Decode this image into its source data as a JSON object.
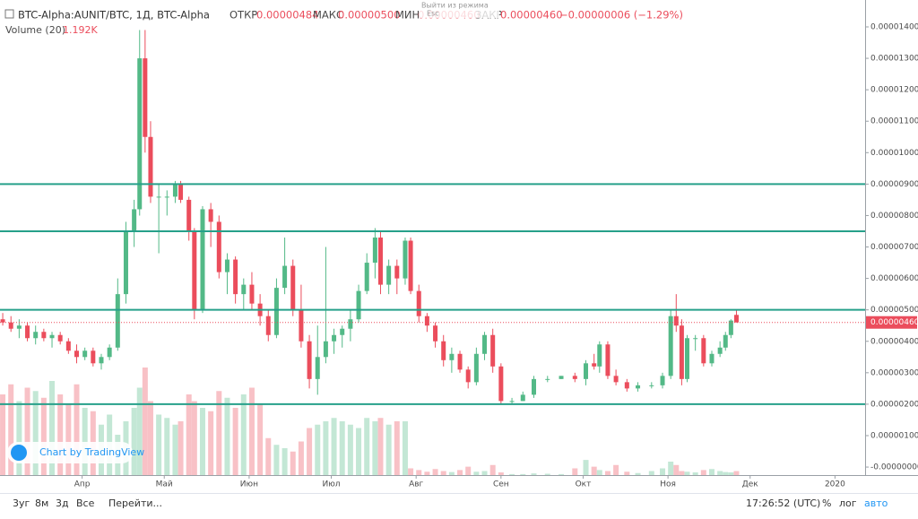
{
  "header": {
    "symbol": "BTC-Alpha:AUNIT/BTC, 1Д, BTC-Alpha",
    "open_label": "ОТКР",
    "open": "0.00000484",
    "high_label": "МАКС",
    "high": "0.00000500",
    "low_label": "МИН",
    "low": "0.00000460",
    "close_label": "ЗАКР",
    "close": "0.00000460",
    "change": "−0.00000006 (−1.29%)",
    "volume_label": "Volume (20)",
    "volume": "1.192K"
  },
  "tooltip": {
    "line1": "Выйти из режима",
    "line2": "Esc"
  },
  "badge": "Chart by TradingView",
  "toolbar": {
    "ranges": [
      "3уг",
      "8м",
      "3д",
      "Все"
    ],
    "goto": "Перейти...",
    "time": "17:26:52 (UTC)",
    "percent": "%",
    "log": "лог",
    "auto": "авто"
  },
  "chart_data": {
    "type": "candlestick",
    "xlim": [
      0,
      316
    ],
    "xticks": [
      {
        "value": 30,
        "label": "Апр"
      },
      {
        "value": 60,
        "label": "Май"
      },
      {
        "value": 91,
        "label": "Июн"
      },
      {
        "value": 121,
        "label": "Июл"
      },
      {
        "value": 152,
        "label": "Авг"
      },
      {
        "value": 183,
        "label": "Сен"
      },
      {
        "value": 213,
        "label": "Окт"
      },
      {
        "value": 244,
        "label": "Ноя"
      },
      {
        "value": 274,
        "label": "Дек"
      },
      {
        "value": 305,
        "label": "2020"
      }
    ],
    "ylim": [
      -5.4e-07,
      1.4855e-05
    ],
    "yticks": [
      {
        "value": 0,
        "label": "-0.00000000"
      },
      {
        "value": 1e-06,
        "label": "0.00000100"
      },
      {
        "value": 2e-06,
        "label": "0.00000200"
      },
      {
        "value": 3e-06,
        "label": "0.00000300"
      },
      {
        "value": 4e-06,
        "label": "0.00000400"
      },
      {
        "value": 5e-06,
        "label": "0.00000500"
      },
      {
        "value": 6e-06,
        "label": "0.00000600"
      },
      {
        "value": 7e-06,
        "label": "0.00000700"
      },
      {
        "value": 8e-06,
        "label": "0.00000800"
      },
      {
        "value": 9e-06,
        "label": "0.00000900"
      },
      {
        "value": 1e-05,
        "label": "0.00001000"
      },
      {
        "value": 1.1e-05,
        "label": "0.00001100"
      },
      {
        "value": 1.2e-05,
        "label": "0.00001200"
      },
      {
        "value": 1.3e-05,
        "label": "0.00001300"
      },
      {
        "value": 1.4e-05,
        "label": "0.00001400"
      }
    ],
    "volume_lim": [
      0,
      40000
    ],
    "up_color": "#53b987",
    "down_color": "#eb4d5c",
    "line_color": "#26a08a",
    "horizontal_lines": [
      9e-06,
      7.5e-06,
      5e-06,
      2e-06
    ],
    "last_price": {
      "value": 4.6e-06,
      "label": "0.00000460"
    },
    "candles": [
      [
        1,
        4.7e-06,
        4.9e-06,
        4.5e-06,
        4.6e-06,
        24000
      ],
      [
        4,
        4.6e-06,
        4.8e-06,
        4.3e-06,
        4.4e-06,
        27000
      ],
      [
        7,
        4.4e-06,
        4.7e-06,
        4.1e-06,
        4.5e-06,
        22000
      ],
      [
        10,
        4.5e-06,
        4.6e-06,
        4e-06,
        4.1e-06,
        26000
      ],
      [
        13,
        4.1e-06,
        4.5e-06,
        3.9e-06,
        4.3e-06,
        25000
      ],
      [
        16,
        4.3e-06,
        4.4e-06,
        4e-06,
        4.1e-06,
        23000
      ],
      [
        19,
        4.1e-06,
        4.3e-06,
        3.8e-06,
        4.2e-06,
        28000
      ],
      [
        22,
        4.2e-06,
        4.3e-06,
        3.9e-06,
        4e-06,
        24000
      ],
      [
        25,
        4e-06,
        4.1e-06,
        3.6e-06,
        3.7e-06,
        21000
      ],
      [
        28,
        3.7e-06,
        3.9e-06,
        3.3e-06,
        3.5e-06,
        27000
      ],
      [
        31,
        3.5e-06,
        3.8e-06,
        3.4e-06,
        3.7e-06,
        20000
      ],
      [
        34,
        3.7e-06,
        3.8e-06,
        3.2e-06,
        3.3e-06,
        19000
      ],
      [
        37,
        3.3e-06,
        3.6e-06,
        3.1e-06,
        3.5e-06,
        15000
      ],
      [
        40,
        3.5e-06,
        3.9e-06,
        3.4e-06,
        3.8e-06,
        18000
      ],
      [
        43,
        3.8e-06,
        6e-06,
        3.7e-06,
        5.5e-06,
        12000
      ],
      [
        46,
        5.5e-06,
        7.8e-06,
        5.2e-06,
        7.5e-06,
        16000
      ],
      [
        49,
        7.5e-06,
        8.5e-06,
        7e-06,
        8.2e-06,
        20000
      ],
      [
        51,
        8.2e-06,
        1.39e-05,
        8e-06,
        1.3e-05,
        26000
      ],
      [
        53,
        1.3e-05,
        1.39e-05,
        1e-05,
        1.05e-05,
        32000
      ],
      [
        55,
        1.05e-05,
        1.1e-05,
        8.4e-06,
        8.6e-06,
        22000
      ],
      [
        58,
        8.6e-06,
        9e-06,
        6.8e-06,
        8.6e-06,
        18000
      ],
      [
        61,
        8.6e-06,
        8.8e-06,
        8e-06,
        8.6e-06,
        17000
      ],
      [
        64,
        8.6e-06,
        9.1e-06,
        8.4e-06,
        9e-06,
        15000
      ],
      [
        66,
        9e-06,
        9.1e-06,
        8.4e-06,
        8.5e-06,
        16000
      ],
      [
        69,
        8.5e-06,
        8.6e-06,
        7.2e-06,
        7.5e-06,
        24000
      ],
      [
        71,
        7.5e-06,
        7.6e-06,
        4.7e-06,
        5e-06,
        22000
      ],
      [
        74,
        5e-06,
        8.3e-06,
        4.9e-06,
        8.2e-06,
        20000
      ],
      [
        77,
        8.2e-06,
        8.4e-06,
        7e-06,
        7.8e-06,
        19000
      ],
      [
        80,
        7.8e-06,
        8e-06,
        6e-06,
        6.2e-06,
        25000
      ],
      [
        83,
        6.2e-06,
        6.8e-06,
        5.5e-06,
        6.6e-06,
        23000
      ],
      [
        86,
        6.6e-06,
        6.7e-06,
        5.2e-06,
        5.5e-06,
        20000
      ],
      [
        89,
        5.5e-06,
        6e-06,
        5e-06,
        5.8e-06,
        24000
      ],
      [
        92,
        5.8e-06,
        6.2e-06,
        5e-06,
        5.2e-06,
        26000
      ],
      [
        95,
        5.2e-06,
        5.5e-06,
        4.5e-06,
        4.8e-06,
        21000
      ],
      [
        98,
        4.8e-06,
        5e-06,
        4e-06,
        4.2e-06,
        11000
      ],
      [
        101,
        4.2e-06,
        6e-06,
        4.1e-06,
        5.7e-06,
        9000
      ],
      [
        104,
        5.7e-06,
        7.3e-06,
        5.5e-06,
        6.4e-06,
        8000
      ],
      [
        107,
        6.4e-06,
        6.6e-06,
        4.8e-06,
        5e-06,
        7000
      ],
      [
        110,
        5e-06,
        5.8e-06,
        3.8e-06,
        4e-06,
        10000
      ],
      [
        113,
        4e-06,
        4.2e-06,
        2.5e-06,
        2.8e-06,
        14000
      ],
      [
        116,
        2.8e-06,
        4.5e-06,
        2.3e-06,
        3.5e-06,
        15000
      ],
      [
        119,
        3.5e-06,
        7e-06,
        3.3e-06,
        4e-06,
        16000
      ],
      [
        122,
        4e-06,
        4.4e-06,
        3.6e-06,
        4.2e-06,
        17000
      ],
      [
        125,
        4.2e-06,
        4.5e-06,
        3.8e-06,
        4.4e-06,
        16000
      ],
      [
        128,
        4.4e-06,
        5e-06,
        4e-06,
        4.7e-06,
        15000
      ],
      [
        131,
        4.7e-06,
        5.8e-06,
        4.6e-06,
        5.6e-06,
        14000
      ],
      [
        134,
        5.6e-06,
        6.8e-06,
        5.5e-06,
        6.5e-06,
        17000
      ],
      [
        137,
        6.5e-06,
        7.6e-06,
        6e-06,
        7.3e-06,
        16000
      ],
      [
        139,
        7.3e-06,
        7.5e-06,
        5.5e-06,
        5.8e-06,
        17000
      ],
      [
        142,
        5.8e-06,
        6.6e-06,
        5.5e-06,
        6.4e-06,
        15000
      ],
      [
        145,
        6.4e-06,
        6.6e-06,
        5.5e-06,
        6e-06,
        16000
      ],
      [
        148,
        6e-06,
        7.3e-06,
        5.8e-06,
        7.2e-06,
        16000
      ],
      [
        150,
        7.2e-06,
        7.3e-06,
        5.5e-06,
        5.6e-06,
        2000
      ],
      [
        153,
        5.6e-06,
        5.8e-06,
        4.6e-06,
        4.8e-06,
        1500
      ],
      [
        156,
        4.8e-06,
        4.9e-06,
        4.3e-06,
        4.5e-06,
        1000
      ],
      [
        159,
        4.5e-06,
        4.6e-06,
        3.8e-06,
        4e-06,
        1800
      ],
      [
        162,
        4e-06,
        4.2e-06,
        3.2e-06,
        3.4e-06,
        1200
      ],
      [
        165,
        3.4e-06,
        3.8e-06,
        3e-06,
        3.6e-06,
        900
      ],
      [
        168,
        3.6e-06,
        3.7e-06,
        3e-06,
        3.1e-06,
        1500
      ],
      [
        171,
        3.1e-06,
        3.2e-06,
        2.5e-06,
        2.7e-06,
        2500
      ],
      [
        174,
        2.7e-06,
        3.8e-06,
        2.6e-06,
        3.6e-06,
        1000
      ],
      [
        177,
        3.6e-06,
        4.3e-06,
        3.4e-06,
        4.2e-06,
        1200
      ],
      [
        180,
        4.2e-06,
        4.4e-06,
        3e-06,
        3.2e-06,
        3000
      ],
      [
        183,
        3.2e-06,
        3.3e-06,
        2e-06,
        2.1e-06,
        800
      ],
      [
        187,
        2.1e-06,
        2.2e-06,
        2e-06,
        2.1e-06,
        300
      ],
      [
        191,
        2.1e-06,
        2.4e-06,
        2.1e-06,
        2.3e-06,
        300
      ],
      [
        195,
        2.3e-06,
        2.9e-06,
        2.2e-06,
        2.8e-06,
        500
      ],
      [
        200,
        2.8e-06,
        2.9e-06,
        2.7e-06,
        2.8e-06,
        400
      ],
      [
        205,
        2.8e-06,
        2.9e-06,
        2.8e-06,
        2.9e-06,
        300
      ],
      [
        210,
        2.9e-06,
        3e-06,
        2.7e-06,
        2.8e-06,
        2000
      ],
      [
        214,
        2.8e-06,
        3.4e-06,
        2.6e-06,
        3.3e-06,
        4500
      ],
      [
        217,
        3.3e-06,
        3.6e-06,
        3.1e-06,
        3.2e-06,
        2500
      ],
      [
        219,
        3.2e-06,
        4e-06,
        3e-06,
        3.9e-06,
        1500
      ],
      [
        222,
        3.9e-06,
        4e-06,
        2.8e-06,
        2.9e-06,
        1200
      ],
      [
        225,
        2.9e-06,
        3.1e-06,
        2.6e-06,
        2.7e-06,
        3000
      ],
      [
        229,
        2.7e-06,
        2.8e-06,
        2.4e-06,
        2.5e-06,
        1000
      ],
      [
        233,
        2.5e-06,
        2.7e-06,
        2.4e-06,
        2.6e-06,
        600
      ],
      [
        238,
        2.6e-06,
        2.7e-06,
        2.5e-06,
        2.6e-06,
        1200
      ],
      [
        242,
        2.6e-06,
        3e-06,
        2.5e-06,
        2.9e-06,
        2000
      ],
      [
        245,
        2.9e-06,
        5e-06,
        2.8e-06,
        4.8e-06,
        4000
      ],
      [
        247,
        4.8e-06,
        5.5e-06,
        4.3e-06,
        4.5e-06,
        3000
      ],
      [
        249,
        4.5e-06,
        4.7e-06,
        2.6e-06,
        2.8e-06,
        1200
      ],
      [
        251,
        2.8e-06,
        4.2e-06,
        2.7e-06,
        4.1e-06,
        1000
      ],
      [
        254,
        4.1e-06,
        4.2e-06,
        3.7e-06,
        4.1e-06,
        800
      ],
      [
        257,
        4.1e-06,
        4.2e-06,
        3.2e-06,
        3.3e-06,
        1500
      ],
      [
        260,
        3.3e-06,
        3.7e-06,
        3.2e-06,
        3.6e-06,
        1800
      ],
      [
        263,
        3.6e-06,
        4e-06,
        3.5e-06,
        3.8e-06,
        1200
      ],
      [
        265,
        3.8e-06,
        4.3e-06,
        3.7e-06,
        4.2e-06,
        900
      ],
      [
        267,
        4.2e-06,
        4.7e-06,
        4.1e-06,
        4.66e-06,
        800
      ],
      [
        269,
        4.84e-06,
        5e-06,
        4.6e-06,
        4.6e-06,
        1192
      ]
    ]
  }
}
